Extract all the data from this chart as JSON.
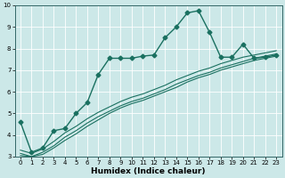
{
  "title": "",
  "xlabel": "Humidex (Indice chaleur)",
  "ylabel": "",
  "xlim": [
    -0.5,
    23.5
  ],
  "ylim": [
    3,
    10
  ],
  "xticks": [
    0,
    1,
    2,
    3,
    4,
    5,
    6,
    7,
    8,
    9,
    10,
    11,
    12,
    13,
    14,
    15,
    16,
    17,
    18,
    19,
    20,
    21,
    22,
    23
  ],
  "yticks": [
    3,
    4,
    5,
    6,
    7,
    8,
    9,
    10
  ],
  "bg_color": "#cce8e8",
  "line_color": "#1a7060",
  "grid_color": "#ffffff",
  "line1_x": [
    0,
    1,
    2,
    3,
    4,
    5,
    6,
    7,
    8,
    9,
    10,
    11,
    12,
    13,
    14,
    15,
    16,
    17,
    18,
    19,
    20,
    21,
    22,
    23
  ],
  "line1_y": [
    4.6,
    3.2,
    3.4,
    4.2,
    4.3,
    5.0,
    5.5,
    6.8,
    7.55,
    7.55,
    7.55,
    7.65,
    7.7,
    8.5,
    9.0,
    9.65,
    9.75,
    8.75,
    7.6,
    7.6,
    8.2,
    7.55,
    7.6,
    7.7
  ],
  "line2_x": [
    0,
    1,
    2,
    3,
    4,
    5,
    6,
    7,
    8,
    9,
    10,
    11,
    12,
    13,
    14,
    15,
    16,
    17,
    18,
    19,
    20,
    21,
    22,
    23
  ],
  "line2_y": [
    3.3,
    3.15,
    3.35,
    3.7,
    4.1,
    4.4,
    4.75,
    5.05,
    5.3,
    5.55,
    5.75,
    5.9,
    6.1,
    6.3,
    6.55,
    6.75,
    6.95,
    7.1,
    7.3,
    7.45,
    7.6,
    7.7,
    7.8,
    7.9
  ],
  "line3_x": [
    0,
    1,
    2,
    3,
    4,
    5,
    6,
    7,
    8,
    9,
    10,
    11,
    12,
    13,
    14,
    15,
    16,
    17,
    18,
    19,
    20,
    21,
    22,
    23
  ],
  "line3_y": [
    3.15,
    3.0,
    3.2,
    3.5,
    3.9,
    4.2,
    4.55,
    4.85,
    5.1,
    5.35,
    5.55,
    5.7,
    5.9,
    6.1,
    6.35,
    6.55,
    6.75,
    6.9,
    7.1,
    7.25,
    7.4,
    7.55,
    7.65,
    7.75
  ],
  "line4_x": [
    0,
    1,
    2,
    3,
    4,
    5,
    6,
    7,
    8,
    9,
    10,
    11,
    12,
    13,
    14,
    15,
    16,
    17,
    18,
    19,
    20,
    21,
    22,
    23
  ],
  "line4_y": [
    3.05,
    3.0,
    3.1,
    3.4,
    3.75,
    4.05,
    4.4,
    4.7,
    5.0,
    5.25,
    5.45,
    5.6,
    5.8,
    6.0,
    6.2,
    6.45,
    6.65,
    6.8,
    7.0,
    7.15,
    7.3,
    7.45,
    7.55,
    7.65
  ],
  "xlabel_fontsize": 6.5,
  "tick_fontsize": 5.0,
  "linewidth_main": 1.0,
  "linewidth_other": 0.8,
  "marker": "D",
  "markersize": 2.5
}
